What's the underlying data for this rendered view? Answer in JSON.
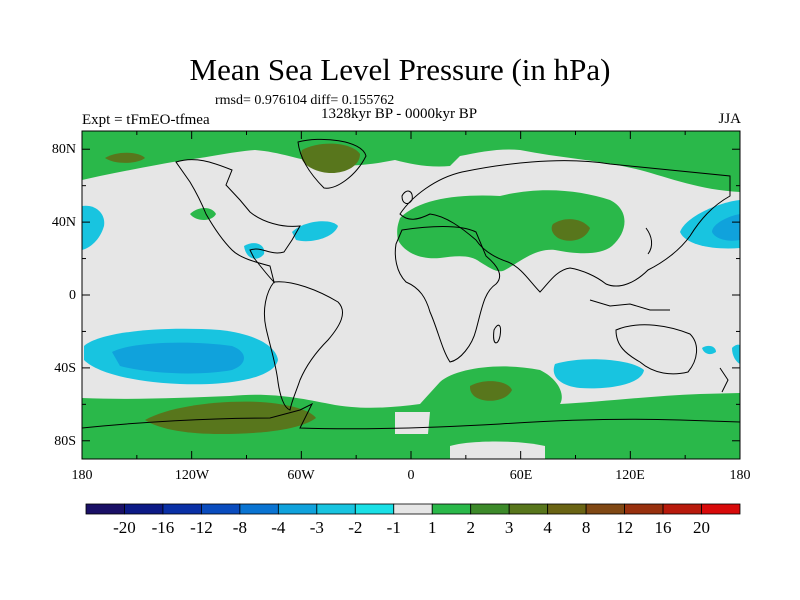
{
  "title": "Mean Sea Level Pressure (in hPa)",
  "stats": "rmsd= 0.976104 diff= 0.155762",
  "period": "1328kyr BP - 0000kyr BP",
  "experiment": "Expt = tFmEO-tfmea",
  "season": "JJA",
  "map": {
    "lat_range": [
      -90,
      90
    ],
    "lon_range": [
      -180,
      180
    ],
    "y_ticks": [
      "80N",
      "40N",
      "0",
      "40S",
      "80S"
    ],
    "x_ticks": [
      "180",
      "120W",
      "60W",
      "0",
      "60E",
      "120E",
      "180"
    ]
  },
  "colorbar": {
    "colors": [
      "#1a1066",
      "#0c1a86",
      "#0a30a6",
      "#0a4cbe",
      "#0a74d2",
      "#10a2dc",
      "#18c4e0",
      "#1ae0e6",
      "#e6e6e6",
      "#2ab84a",
      "#3d8a2a",
      "#58761c",
      "#6a6414",
      "#804814",
      "#98300e",
      "#b81a0c",
      "#d80a0a"
    ],
    "labels": [
      "-20",
      "-16",
      "-12",
      "-8",
      "-4",
      "-3",
      "-2",
      "-1",
      "1",
      "2",
      "3",
      "4",
      "8",
      "12",
      "16",
      "20"
    ]
  },
  "field_colors": {
    "background": "#e6e6e6",
    "positive_1": "#2ab84a",
    "positive_3": "#58761c",
    "negative_2": "#18c4e0",
    "negative_3": "#10a2dc"
  }
}
